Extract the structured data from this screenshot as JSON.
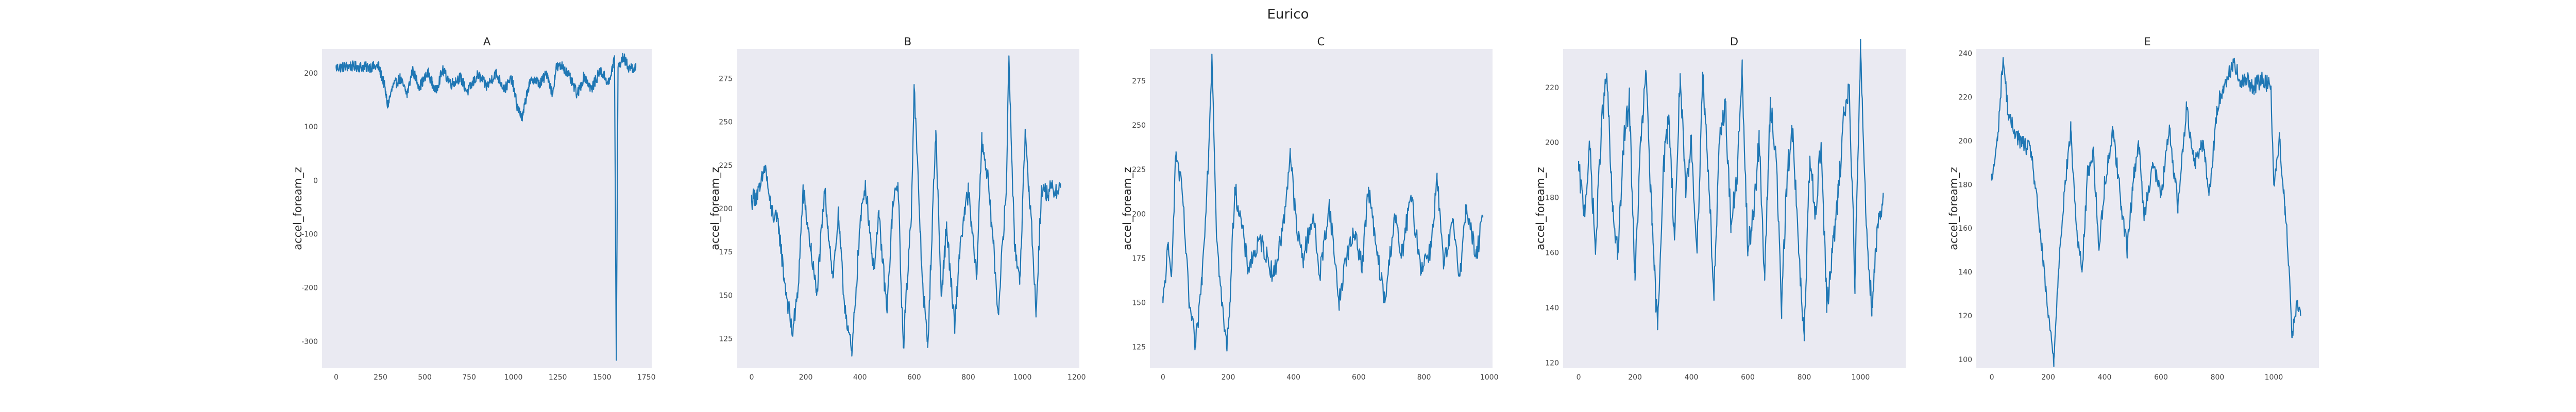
{
  "chart_data": {
    "type": "line",
    "title": "Eurico",
    "grid": false,
    "panels": [
      {
        "title": "A",
        "ylabel": "accel_foream_z",
        "xlim": [
          -80,
          1780
        ],
        "ylim": [
          -350,
          245
        ],
        "xticks": [
          0,
          250,
          500,
          750,
          1000,
          1250,
          1500,
          1750
        ],
        "yticks": [
          200,
          100,
          0,
          -100,
          -200,
          -300
        ],
        "n": 1700,
        "anchors": [
          [
            0,
            210
          ],
          [
            80,
            213
          ],
          [
            160,
            211
          ],
          [
            240,
            212
          ],
          [
            270,
            180
          ],
          [
            290,
            140
          ],
          [
            320,
            175
          ],
          [
            360,
            190
          ],
          [
            400,
            160
          ],
          [
            430,
            205
          ],
          [
            470,
            175
          ],
          [
            520,
            200
          ],
          [
            560,
            165
          ],
          [
            600,
            205
          ],
          [
            650,
            180
          ],
          [
            700,
            192
          ],
          [
            740,
            165
          ],
          [
            800,
            197
          ],
          [
            850,
            175
          ],
          [
            900,
            200
          ],
          [
            950,
            170
          ],
          [
            990,
            190
          ],
          [
            1020,
            140
          ],
          [
            1050,
            115
          ],
          [
            1080,
            170
          ],
          [
            1110,
            190
          ],
          [
            1150,
            180
          ],
          [
            1190,
            200
          ],
          [
            1220,
            160
          ],
          [
            1240,
            210
          ],
          [
            1280,
            213
          ],
          [
            1320,
            190
          ],
          [
            1360,
            160
          ],
          [
            1400,
            195
          ],
          [
            1440,
            170
          ],
          [
            1490,
            205
          ],
          [
            1540,
            180
          ],
          [
            1570,
            230
          ],
          [
            1580,
            -335
          ],
          [
            1590,
            210
          ],
          [
            1620,
            230
          ],
          [
            1650,
            210
          ],
          [
            1690,
            210
          ]
        ],
        "noise": 10
      },
      {
        "title": "B",
        "ylabel": "accel_foream_z",
        "xlim": [
          -55,
          1210
        ],
        "ylim": [
          108,
          292
        ],
        "xticks": [
          0,
          200,
          400,
          600,
          800,
          1000,
          1200
        ],
        "yticks": [
          275,
          250,
          225,
          200,
          175,
          150,
          125
        ],
        "n": 1150,
        "anchors": [
          [
            0,
            205
          ],
          [
            30,
            210
          ],
          [
            50,
            225
          ],
          [
            70,
            200
          ],
          [
            100,
            190
          ],
          [
            120,
            160
          ],
          [
            150,
            128
          ],
          [
            170,
            150
          ],
          [
            190,
            210
          ],
          [
            220,
            175
          ],
          [
            240,
            150
          ],
          [
            270,
            210
          ],
          [
            300,
            160
          ],
          [
            320,
            195
          ],
          [
            340,
            150
          ],
          [
            370,
            115
          ],
          [
            400,
            190
          ],
          [
            420,
            215
          ],
          [
            450,
            165
          ],
          [
            470,
            195
          ],
          [
            500,
            140
          ],
          [
            520,
            200
          ],
          [
            540,
            215
          ],
          [
            560,
            120
          ],
          [
            590,
            200
          ],
          [
            600,
            270
          ],
          [
            630,
            160
          ],
          [
            650,
            120
          ],
          [
            680,
            245
          ],
          [
            700,
            150
          ],
          [
            720,
            190
          ],
          [
            750,
            130
          ],
          [
            770,
            180
          ],
          [
            800,
            210
          ],
          [
            830,
            160
          ],
          [
            850,
            240
          ],
          [
            870,
            220
          ],
          [
            890,
            185
          ],
          [
            910,
            140
          ],
          [
            940,
            210
          ],
          [
            950,
            288
          ],
          [
            970,
            180
          ],
          [
            990,
            160
          ],
          [
            1010,
            240
          ],
          [
            1030,
            200
          ],
          [
            1050,
            140
          ],
          [
            1070,
            210
          ],
          [
            1100,
            210
          ],
          [
            1140,
            212
          ]
        ],
        "noise": 6
      },
      {
        "title": "C",
        "ylabel": "accel_foream_z",
        "xlim": [
          -40,
          1010
        ],
        "ylim": [
          113,
          293
        ],
        "xticks": [
          0,
          200,
          400,
          600,
          800,
          1000
        ],
        "yticks": [
          275,
          250,
          225,
          200,
          175,
          150,
          125
        ],
        "n": 980,
        "anchors": [
          [
            0,
            150
          ],
          [
            15,
            180
          ],
          [
            25,
            165
          ],
          [
            40,
            235
          ],
          [
            60,
            210
          ],
          [
            80,
            150
          ],
          [
            100,
            125
          ],
          [
            120,
            165
          ],
          [
            140,
            235
          ],
          [
            150,
            290
          ],
          [
            165,
            185
          ],
          [
            180,
            150
          ],
          [
            195,
            125
          ],
          [
            205,
            150
          ],
          [
            220,
            215
          ],
          [
            240,
            195
          ],
          [
            260,
            170
          ],
          [
            300,
            185
          ],
          [
            340,
            165
          ],
          [
            370,
            195
          ],
          [
            390,
            235
          ],
          [
            410,
            190
          ],
          [
            430,
            175
          ],
          [
            460,
            200
          ],
          [
            480,
            165
          ],
          [
            510,
            205
          ],
          [
            540,
            150
          ],
          [
            560,
            175
          ],
          [
            590,
            190
          ],
          [
            610,
            170
          ],
          [
            630,
            215
          ],
          [
            650,
            185
          ],
          [
            680,
            150
          ],
          [
            710,
            200
          ],
          [
            730,
            175
          ],
          [
            760,
            210
          ],
          [
            790,
            170
          ],
          [
            820,
            180
          ],
          [
            840,
            220
          ],
          [
            860,
            170
          ],
          [
            890,
            195
          ],
          [
            910,
            165
          ],
          [
            930,
            205
          ],
          [
            960,
            175
          ],
          [
            980,
            198
          ]
        ],
        "noise": 6
      },
      {
        "title": "D",
        "ylabel": "accel_foream_z",
        "xlim": [
          -55,
          1160
        ],
        "ylim": [
          118,
          234
        ],
        "xticks": [
          0,
          200,
          400,
          600,
          800,
          1000
        ],
        "yticks": [
          220,
          200,
          180,
          160,
          140,
          120
        ],
        "n": 1100,
        "anchors": [
          [
            0,
            190
          ],
          [
            20,
            175
          ],
          [
            40,
            198
          ],
          [
            60,
            160
          ],
          [
            80,
            205
          ],
          [
            100,
            225
          ],
          [
            120,
            175
          ],
          [
            140,
            160
          ],
          [
            160,
            200
          ],
          [
            180,
            215
          ],
          [
            200,
            150
          ],
          [
            220,
            200
          ],
          [
            240,
            225
          ],
          [
            260,
            170
          ],
          [
            280,
            132
          ],
          [
            300,
            190
          ],
          [
            320,
            210
          ],
          [
            340,
            165
          ],
          [
            360,
            225
          ],
          [
            380,
            180
          ],
          [
            400,
            200
          ],
          [
            420,
            160
          ],
          [
            440,
            225
          ],
          [
            460,
            190
          ],
          [
            480,
            145
          ],
          [
            500,
            200
          ],
          [
            520,
            215
          ],
          [
            540,
            170
          ],
          [
            560,
            185
          ],
          [
            580,
            225
          ],
          [
            600,
            160
          ],
          [
            620,
            175
          ],
          [
            640,
            200
          ],
          [
            660,
            150
          ],
          [
            680,
            215
          ],
          [
            700,
            195
          ],
          [
            720,
            140
          ],
          [
            740,
            190
          ],
          [
            760,
            205
          ],
          [
            780,
            160
          ],
          [
            800,
            128
          ],
          [
            820,
            195
          ],
          [
            840,
            175
          ],
          [
            860,
            200
          ],
          [
            880,
            140
          ],
          [
            900,
            160
          ],
          [
            920,
            180
          ],
          [
            940,
            210
          ],
          [
            960,
            220
          ],
          [
            980,
            150
          ],
          [
            1000,
            233
          ],
          [
            1020,
            170
          ],
          [
            1040,
            140
          ],
          [
            1060,
            170
          ],
          [
            1080,
            180
          ]
        ],
        "noise": 5
      },
      {
        "title": "E",
        "ylabel": "accel_foream_z",
        "xlim": [
          -55,
          1160
        ],
        "ylim": [
          96,
          242
        ],
        "xticks": [
          0,
          200,
          400,
          600,
          800,
          1000
        ],
        "yticks": [
          240,
          220,
          200,
          180,
          160,
          140,
          120,
          100
        ],
        "n": 1100,
        "anchors": [
          [
            0,
            182
          ],
          [
            20,
            200
          ],
          [
            40,
            238
          ],
          [
            60,
            210
          ],
          [
            80,
            205
          ],
          [
            100,
            200
          ],
          [
            140,
            195
          ],
          [
            170,
            160
          ],
          [
            200,
            120
          ],
          [
            220,
            100
          ],
          [
            240,
            150
          ],
          [
            260,
            180
          ],
          [
            280,
            205
          ],
          [
            300,
            160
          ],
          [
            320,
            140
          ],
          [
            340,
            185
          ],
          [
            360,
            195
          ],
          [
            380,
            150
          ],
          [
            400,
            180
          ],
          [
            430,
            205
          ],
          [
            460,
            170
          ],
          [
            480,
            150
          ],
          [
            500,
            180
          ],
          [
            520,
            200
          ],
          [
            540,
            165
          ],
          [
            570,
            190
          ],
          [
            600,
            175
          ],
          [
            630,
            205
          ],
          [
            660,
            170
          ],
          [
            690,
            215
          ],
          [
            720,
            190
          ],
          [
            750,
            200
          ],
          [
            770,
            175
          ],
          [
            800,
            215
          ],
          [
            820,
            225
          ],
          [
            840,
            230
          ],
          [
            860,
            237
          ],
          [
            880,
            225
          ],
          [
            900,
            228
          ],
          [
            930,
            225
          ],
          [
            960,
            228
          ],
          [
            990,
            225
          ],
          [
            1000,
            180
          ],
          [
            1020,
            200
          ],
          [
            1040,
            170
          ],
          [
            1055,
            140
          ],
          [
            1065,
            110
          ],
          [
            1080,
            125
          ],
          [
            1095,
            120
          ]
        ],
        "noise": 4
      }
    ]
  }
}
